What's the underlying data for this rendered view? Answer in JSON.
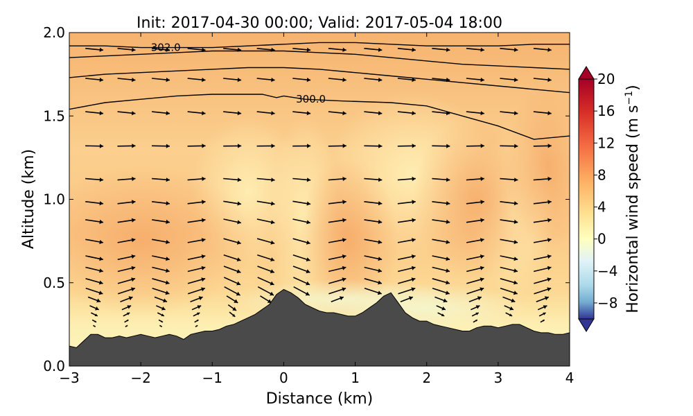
{
  "chart_data": {
    "type": "contourf",
    "title": "Init: 2017-04-30 00:00; Valid: 2017-05-04 18:00",
    "xlabel": "Distance (km)",
    "ylabel": "Altitude (km)",
    "xlim": [
      -3,
      4
    ],
    "ylim": [
      0.0,
      2.0
    ],
    "x_ticks": [
      -3,
      -2,
      -1,
      0,
      1,
      2,
      3,
      4
    ],
    "x_tick_labels": [
      "−3",
      "−2",
      "−1",
      "0",
      "1",
      "2",
      "3",
      "4"
    ],
    "y_ticks": [
      0.0,
      0.5,
      1.0,
      1.5,
      2.0
    ],
    "y_tick_labels": [
      "0.0",
      "0.5",
      "1.0",
      "1.5",
      "2.0"
    ],
    "colorbar": {
      "label": "Horizontal wind speed (m s",
      "label_superscript": "−1",
      "label_close": ")",
      "range": [
        -10,
        20
      ],
      "ticks": [
        20,
        16,
        12,
        8,
        4,
        0,
        -4,
        -8
      ],
      "tick_labels": [
        "20",
        "16",
        "12",
        "8",
        "4",
        "0",
        "−4",
        "−8"
      ],
      "colormap": "RdYlBu_r",
      "extend": "both"
    },
    "terrain": {
      "color": "#4a4a4a",
      "x": [
        -3.0,
        -2.9,
        -2.8,
        -2.7,
        -2.6,
        -2.5,
        -2.4,
        -2.3,
        -2.2,
        -2.1,
        -2.0,
        -1.9,
        -1.8,
        -1.7,
        -1.6,
        -1.5,
        -1.4,
        -1.3,
        -1.2,
        -1.1,
        -1.0,
        -0.9,
        -0.8,
        -0.7,
        -0.6,
        -0.5,
        -0.4,
        -0.3,
        -0.2,
        -0.1,
        0.0,
        0.1,
        0.2,
        0.3,
        0.4,
        0.5,
        0.6,
        0.7,
        0.8,
        0.9,
        1.0,
        1.1,
        1.2,
        1.3,
        1.4,
        1.5,
        1.6,
        1.7,
        1.8,
        1.9,
        2.0,
        2.1,
        2.2,
        2.3,
        2.4,
        2.5,
        2.6,
        2.7,
        2.8,
        2.9,
        3.0,
        3.1,
        3.2,
        3.3,
        3.4,
        3.5,
        3.6,
        3.7,
        3.8,
        3.9,
        4.0
      ],
      "altitude": [
        0.12,
        0.11,
        0.15,
        0.19,
        0.19,
        0.17,
        0.17,
        0.18,
        0.17,
        0.18,
        0.19,
        0.18,
        0.17,
        0.18,
        0.19,
        0.18,
        0.16,
        0.19,
        0.2,
        0.21,
        0.21,
        0.22,
        0.24,
        0.25,
        0.27,
        0.29,
        0.31,
        0.34,
        0.37,
        0.43,
        0.46,
        0.44,
        0.41,
        0.37,
        0.35,
        0.33,
        0.32,
        0.32,
        0.31,
        0.3,
        0.3,
        0.32,
        0.35,
        0.38,
        0.42,
        0.44,
        0.38,
        0.32,
        0.29,
        0.27,
        0.27,
        0.25,
        0.24,
        0.23,
        0.22,
        0.21,
        0.21,
        0.23,
        0.24,
        0.24,
        0.23,
        0.24,
        0.25,
        0.25,
        0.23,
        0.21,
        0.2,
        0.2,
        0.19,
        0.19,
        0.2
      ]
    },
    "contours": [
      {
        "level": 302.0,
        "label": "302.0",
        "label_x": -1.65,
        "label_y": 1.91,
        "x": [
          -3.0,
          -2.5,
          -2.0,
          -1.5,
          -1.0,
          -0.5,
          0.0,
          0.5,
          1.0,
          1.5,
          2.0,
          2.5,
          3.0,
          3.5,
          4.0
        ],
        "y": [
          1.92,
          1.92,
          1.91,
          1.91,
          1.91,
          1.92,
          1.93,
          1.94,
          1.94,
          1.93,
          1.92,
          1.92,
          1.92,
          1.93,
          1.93
        ]
      },
      {
        "level": null,
        "label": "",
        "x": [
          -3.0,
          -2.5,
          -2.0,
          -1.5,
          -1.0,
          -0.5,
          0.0,
          0.5,
          1.0,
          1.5,
          2.0,
          2.5,
          3.0,
          3.5,
          4.0
        ],
        "y": [
          1.85,
          1.86,
          1.87,
          1.88,
          1.89,
          1.89,
          1.89,
          1.88,
          1.87,
          1.85,
          1.83,
          1.81,
          1.8,
          1.79,
          1.78
        ]
      },
      {
        "level": null,
        "label": "",
        "x": [
          -3.0,
          -2.5,
          -2.0,
          -1.5,
          -1.0,
          -0.5,
          0.0,
          0.5,
          1.0,
          1.5,
          2.0,
          2.5,
          3.0,
          3.5,
          4.0
        ],
        "y": [
          1.73,
          1.75,
          1.76,
          1.77,
          1.78,
          1.79,
          1.79,
          1.78,
          1.76,
          1.74,
          1.72,
          1.7,
          1.68,
          1.66,
          1.64
        ]
      },
      {
        "level": 300.0,
        "label": "300.0",
        "label_x": 0.38,
        "label_y": 1.6,
        "x": [
          -3.0,
          -2.5,
          -2.0,
          -1.5,
          -1.0,
          -0.5,
          -0.3,
          -0.1,
          0.0,
          0.3,
          0.8,
          1.5,
          2.0,
          2.5,
          3.0,
          3.5,
          4.0
        ],
        "y": [
          1.54,
          1.58,
          1.6,
          1.62,
          1.63,
          1.63,
          1.63,
          1.61,
          1.62,
          1.6,
          1.59,
          1.58,
          1.56,
          1.5,
          1.44,
          1.36,
          1.38
        ]
      }
    ],
    "wind_vectors": "quiver arrows showing horizontal/vertical wind on an irregular grid; rightward near the top, strongly upslope/downslope near the terrain"
  }
}
